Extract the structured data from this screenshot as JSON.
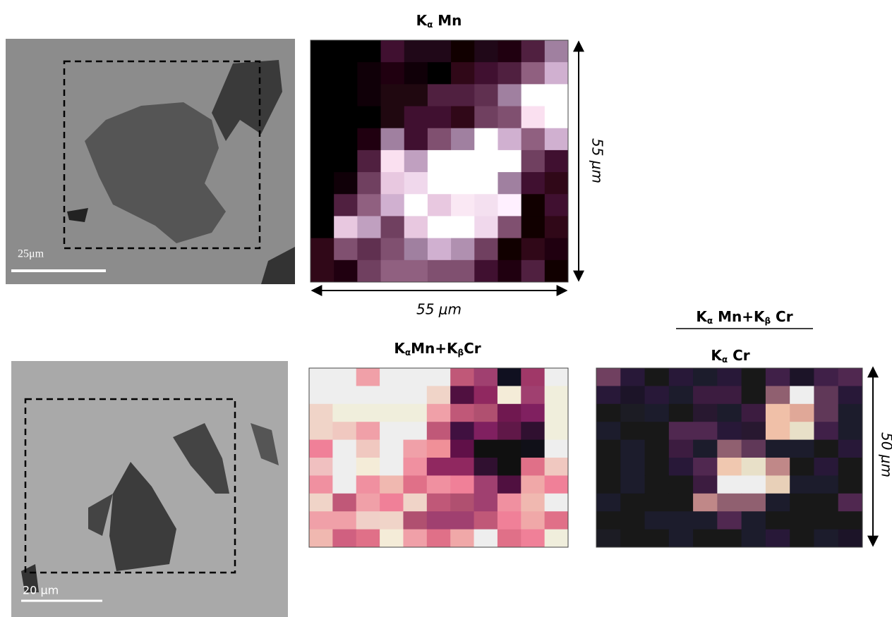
{
  "sem_images": [
    {
      "scale_bar": "25μm"
    },
    {
      "scale_bar": "20 μm"
    }
  ],
  "maps": [
    {
      "title": [
        {
          "text": "K"
        },
        {
          "sub": "α"
        },
        {
          "text": " Mn"
        }
      ],
      "width_label": "55 μm",
      "height_label": "55 μm",
      "cells": [
        [
          "#000",
          "#000",
          "#000",
          "#401030",
          "#200818",
          "#200818",
          "#100",
          "#200818",
          "#200010",
          "#502040",
          "#a080a0"
        ],
        [
          "#000",
          "#000",
          "#100008",
          "#200010",
          "#100008",
          "#000",
          "#300818",
          "#401030",
          "#502040",
          "#906080",
          "#d0b0d0"
        ],
        [
          "#000",
          "#000",
          "#100008",
          "#200810",
          "#200810",
          "#502040",
          "#502040",
          "#603050",
          "#a080a0",
          "#fff",
          "#fff"
        ],
        [
          "#000",
          "#000",
          "#000",
          "#200810",
          "#401030",
          "#401030",
          "#300818",
          "#704060",
          "#805070",
          "#fae0f0",
          "#fff"
        ],
        [
          "#000",
          "#000",
          "#200010",
          "#a080a0",
          "#401030",
          "#805070",
          "#a080a0",
          "#fff",
          "#d0b0d0",
          "#906080",
          "#d0b0d0"
        ],
        [
          "#000",
          "#000",
          "#502040",
          "#fae0f0",
          "#c0a0c0",
          "#fff",
          "#fff",
          "#fff",
          "#fff",
          "#704060",
          "#401030"
        ],
        [
          "#000",
          "#100008",
          "#704060",
          "#e8c8e0",
          "#f0d8ec",
          "#fff",
          "#fff",
          "#fff",
          "#a080a0",
          "#401030",
          "#300818"
        ],
        [
          "#000",
          "#502040",
          "#906080",
          "#d0b0d0",
          "#fff",
          "#e8c8e0",
          "#fae8f4",
          "#f4e0f0",
          "#fff0ff",
          "#100",
          "#401030"
        ],
        [
          "#000",
          "#e8c8e0",
          "#c0a0c0",
          "#704060",
          "#e8c8e0",
          "#fff",
          "#fff",
          "#f0d8ec",
          "#805070",
          "#100",
          "#300818"
        ],
        [
          "#300818",
          "#805070",
          "#603050",
          "#805070",
          "#a080a0",
          "#d0b0d0",
          "#b090b0",
          "#704060",
          "#100",
          "#300818",
          "#200010"
        ],
        [
          "#300818",
          "#200010",
          "#704060",
          "#906080",
          "#906080",
          "#805070",
          "#805070",
          "#401030",
          "#200010",
          "#502040",
          "#100"
        ]
      ]
    },
    {
      "title": [
        {
          "text": "K"
        },
        {
          "sub": "α"
        },
        {
          "text": "Mn+K"
        },
        {
          "sub": "β"
        },
        {
          "text": "Cr"
        }
      ],
      "cells": [
        [
          "#eee",
          "#eee",
          "#f0a0a8",
          "#eee",
          "#eee",
          "#eee",
          "#c05878",
          "#a04070",
          "#101020",
          "#a03868",
          "#eee"
        ],
        [
          "#eee",
          "#eee",
          "#eee",
          "#eee",
          "#eee",
          "#f0d4c8",
          "#501040",
          "#902860",
          "#f4ecd8",
          "#a04070",
          "#f0eedc"
        ],
        [
          "#f0d4c8",
          "#f0eedc",
          "#f0eedc",
          "#f0eedc",
          "#f0eedc",
          "#f0a0a8",
          "#c05878",
          "#b05070",
          "#701850",
          "#802060",
          "#f0eedc"
        ],
        [
          "#f0d4c8",
          "#f0c8c0",
          "#f0a0a8",
          "#eee",
          "#eee",
          "#c05878",
          "#401040",
          "#802060",
          "#601848",
          "#301030",
          "#f0eedc"
        ],
        [
          "#f08098",
          "#eee",
          "#f0c8c0",
          "#eee",
          "#f0a0a8",
          "#f09098",
          "#601048",
          "#101010",
          "#101010",
          "#101018",
          "#eee"
        ],
        [
          "#f0c0c0",
          "#eee",
          "#f4ecd8",
          "#eee",
          "#f090a0",
          "#902860",
          "#902860",
          "#301030",
          "#101010",
          "#e07088",
          "#f0c8c0"
        ],
        [
          "#f090a0",
          "#eee",
          "#f090a0",
          "#f0b8b0",
          "#e07088",
          "#f090a0",
          "#f08098",
          "#a04070",
          "#501040",
          "#f0a8a8",
          "#f08098"
        ],
        [
          "#f0d4c8",
          "#c05878",
          "#f0a0a8",
          "#f08098",
          "#f0d4c8",
          "#c05878",
          "#b05070",
          "#a04070",
          "#f090a0",
          "#f0b8b0",
          "#eee"
        ],
        [
          "#f0a0a8",
          "#f0a0a8",
          "#f0d0c8",
          "#f0d4c8",
          "#b05070",
          "#a04070",
          "#a04070",
          "#c05878",
          "#f08098",
          "#f0a8a8",
          "#e07088"
        ],
        [
          "#f0b8b0",
          "#d06080",
          "#e07088",
          "#f4ecd8",
          "#f0a0a8",
          "#e07088",
          "#f0a8a8",
          "#eee",
          "#e07088",
          "#f08098",
          "#f0eedc"
        ]
      ]
    },
    {
      "numerator": [
        {
          "text": "K"
        },
        {
          "sub": "α"
        },
        {
          "text": " Mn+K"
        },
        {
          "sub": "β"
        },
        {
          "text": " Cr"
        }
      ],
      "denominator": [
        {
          "text": "K"
        },
        {
          "sub": "α"
        },
        {
          "text": " Cr"
        }
      ],
      "height_label": "50 μm",
      "cells": [
        [
          "#704060",
          "#281838",
          "#181818",
          "#281838",
          "#1c1c2c",
          "#281838",
          "#181818",
          "#402048",
          "#1c1428",
          "#402048",
          "#502850"
        ],
        [
          "#281838",
          "#1c1428",
          "#281838",
          "#1c1c2c",
          "#3c1c40",
          "#3c1c40",
          "#181818",
          "#906070",
          "#eee",
          "#603858",
          "#281838"
        ],
        [
          "#181818",
          "#1c1c24",
          "#1c1c2c",
          "#181818",
          "#281830",
          "#1c1c2c",
          "#3c1c40",
          "#f0c0a8",
          "#e0a898",
          "#603858",
          "#1c1c2c"
        ],
        [
          "#1c1c2c",
          "#181818",
          "#181818",
          "#502850",
          "#502850",
          "#281838",
          "#281830",
          "#f0c0a8",
          "#e8e0c8",
          "#402048",
          "#1c1c2c"
        ],
        [
          "#181818",
          "#1c1c2c",
          "#181818",
          "#3c1c40",
          "#1c1c2c",
          "#906070",
          "#603858",
          "#1c1c2c",
          "#1c1c2c",
          "#181818",
          "#281838"
        ],
        [
          "#181818",
          "#1c1c2c",
          "#181818",
          "#281838",
          "#502850",
          "#f0c8b0",
          "#e8e0c8",
          "#c08888",
          "#181818",
          "#281838",
          "#181818"
        ],
        [
          "#181818",
          "#1c1c2c",
          "#181818",
          "#181818",
          "#3c1c40",
          "#eee",
          "#eee",
          "#e8d0b8",
          "#1c1c2c",
          "#1c1c2c",
          "#181818"
        ],
        [
          "#1c1c2c",
          "#181818",
          "#181818",
          "#181818",
          "#c08888",
          "#906070",
          "#906070",
          "#1c1c2c",
          "#181818",
          "#181818",
          "#502850"
        ],
        [
          "#181818",
          "#181818",
          "#1c1c2c",
          "#1c1c2c",
          "#1c1c2c",
          "#502850",
          "#1c1c2c",
          "#181818",
          "#181818",
          "#181818",
          "#181818"
        ],
        [
          "#1c1c24",
          "#181818",
          "#181818",
          "#1c1c2c",
          "#181818",
          "#181818",
          "#1c1c2c",
          "#281838",
          "#181818",
          "#1c1c2c",
          "#1c1428"
        ]
      ]
    }
  ]
}
